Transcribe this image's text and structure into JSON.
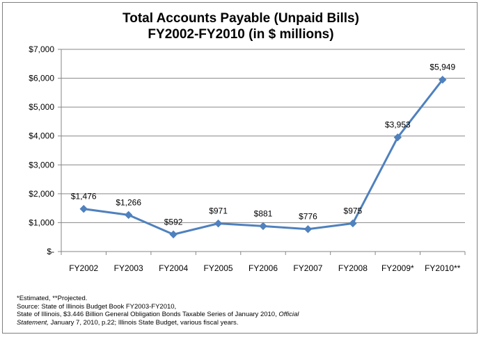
{
  "chart_data": {
    "type": "line",
    "title_line1": "Total Accounts Payable (Unpaid Bills)",
    "title_line2": "FY2002-FY2010 (in $ millions)",
    "categories": [
      "FY2002",
      "FY2003",
      "FY2004",
      "FY2005",
      "FY2006",
      "FY2007",
      "FY2008",
      "FY2009*",
      "FY2010**"
    ],
    "values": [
      1476,
      1266,
      592,
      971,
      881,
      776,
      975,
      3953,
      5949
    ],
    "data_labels": [
      "$1,476",
      "$1,266",
      "$592",
      "$971",
      "$881",
      "$776",
      "$975",
      "$3,953",
      "$5,949"
    ],
    "y_ticks": [
      0,
      1000,
      2000,
      3000,
      4000,
      5000,
      6000,
      7000
    ],
    "y_tick_labels": [
      "$-",
      "$1,000",
      "$2,000",
      "$3,000",
      "$4,000",
      "$5,000",
      "$6,000",
      "$7,000"
    ],
    "ylim": [
      0,
      7000
    ],
    "grid": true,
    "series_color": "#4f81bd",
    "xlabel": "",
    "ylabel": ""
  },
  "notes": {
    "line1": "*Estimated, **Projected.",
    "line2": "Source: State of Illinois  Budget Book FY2003-FY2010,",
    "line3": "State of Illinois, $3.446 Billion General Obligation Bonds Taxable Series of January 2010,",
    "line3_italic": "Official",
    "line4_italic": "Statement,",
    "line4": "January 7, 2010, p.22; Illinois State Budget, various fiscal years."
  }
}
